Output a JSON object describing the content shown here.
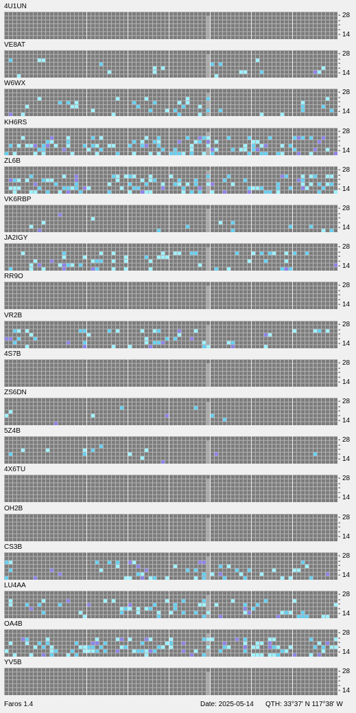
{
  "app": {
    "name": "Faros 1.4"
  },
  "status": {
    "date": "Date: 2025-05-14",
    "qth": "QTH: 33°37' N  117°38' W"
  },
  "scale": {
    "top": "28",
    "mid": "-",
    "bottom": "14",
    "prefix": "-"
  },
  "colors": {
    "background": "#f0f0f0",
    "cell": "#7c7c7c",
    "gridline": "#b4b4b4",
    "divider": "#f0f0f0",
    "now_marker": "#a8a8a8",
    "signal_strong": "#9cf2ff",
    "signal_medium": "#66d0f2",
    "signal_weak": "#8c82ea"
  },
  "stations": [
    {
      "call": "4U1UN",
      "activity": "none"
    },
    {
      "call": "VE8AT",
      "activity": "low"
    },
    {
      "call": "W6WX",
      "activity": "low"
    },
    {
      "call": "KH6RS",
      "activity": "high"
    },
    {
      "call": "ZL6B",
      "activity": "high"
    },
    {
      "call": "VK6RBP",
      "activity": "sparse"
    },
    {
      "call": "JA2IGY",
      "activity": "medium"
    },
    {
      "call": "RR9O",
      "activity": "none"
    },
    {
      "call": "VR2B",
      "activity": "medium"
    },
    {
      "call": "4S7B",
      "activity": "none"
    },
    {
      "call": "ZS6DN",
      "activity": "sparse"
    },
    {
      "call": "5Z4B",
      "activity": "sparse"
    },
    {
      "call": "4X6TU",
      "activity": "none"
    },
    {
      "call": "OH2B",
      "activity": "none"
    },
    {
      "call": "CS3B",
      "activity": "medium"
    },
    {
      "call": "LU4AA",
      "activity": "medium"
    },
    {
      "call": "OA4B",
      "activity": "high"
    },
    {
      "call": "YV5B",
      "activity": "none"
    }
  ]
}
